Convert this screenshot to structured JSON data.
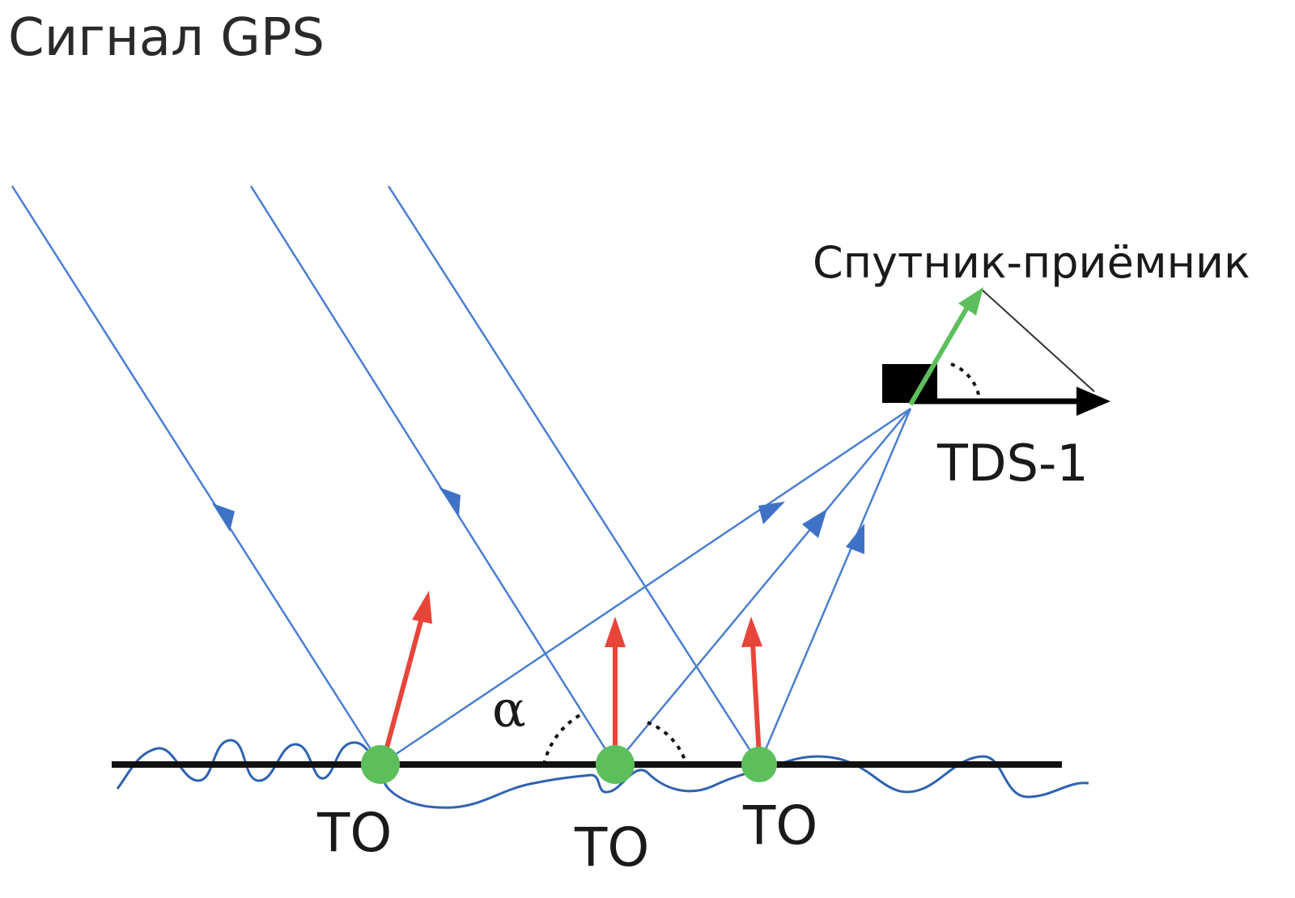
{
  "diagram": {
    "title": "Сигнал GPS",
    "receiver_label": "Спутник-приёмник",
    "satellite_label": "TDS-1",
    "angle_label": "α",
    "reflection_points": [
      {
        "label": "ТО"
      },
      {
        "label": "ТО"
      },
      {
        "label": "ТО"
      }
    ]
  },
  "colors": {
    "signal_ray": "#4a7fd0",
    "normal_arrow": "#e8453a",
    "reflection_point": "#5cbf5c",
    "satellite_arrow": "#5cbf5c",
    "surface": "#111111",
    "rough_surface": "#2f62b0"
  }
}
